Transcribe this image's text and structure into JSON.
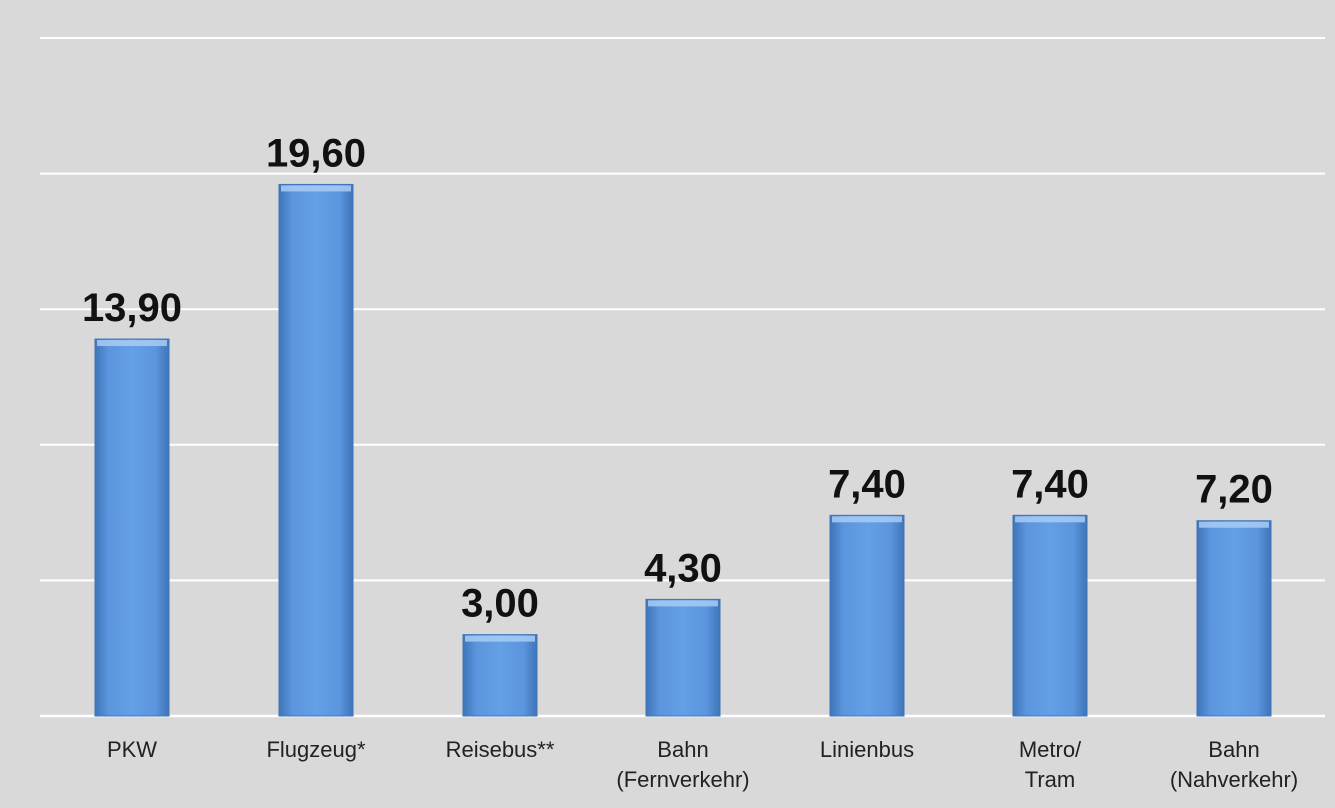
{
  "chart_data": {
    "type": "bar",
    "categories": [
      [
        "PKW"
      ],
      [
        "Flugzeug*"
      ],
      [
        "Reisebus**"
      ],
      [
        "Bahn",
        "(Fernverkehr)"
      ],
      [
        "Linienbus"
      ],
      [
        "Metro/",
        "Tram"
      ],
      [
        "Bahn",
        "(Nahverkehr)"
      ]
    ],
    "values": [
      13.9,
      19.6,
      3.0,
      4.3,
      7.4,
      7.4,
      7.2
    ],
    "value_labels": [
      "13,90",
      "19,60",
      "3,00",
      "4,30",
      "7,40",
      "7,40",
      "7,20"
    ],
    "title": "",
    "xlabel": "",
    "ylabel": "",
    "ylim": [
      0,
      25
    ],
    "grid": true,
    "colors": {
      "background": "#d9d9d9",
      "gridline": "#ffffff",
      "bar": "#5b95dd",
      "bar_dark": "#3f74b8",
      "bar_light": "#a9cbf3"
    }
  }
}
